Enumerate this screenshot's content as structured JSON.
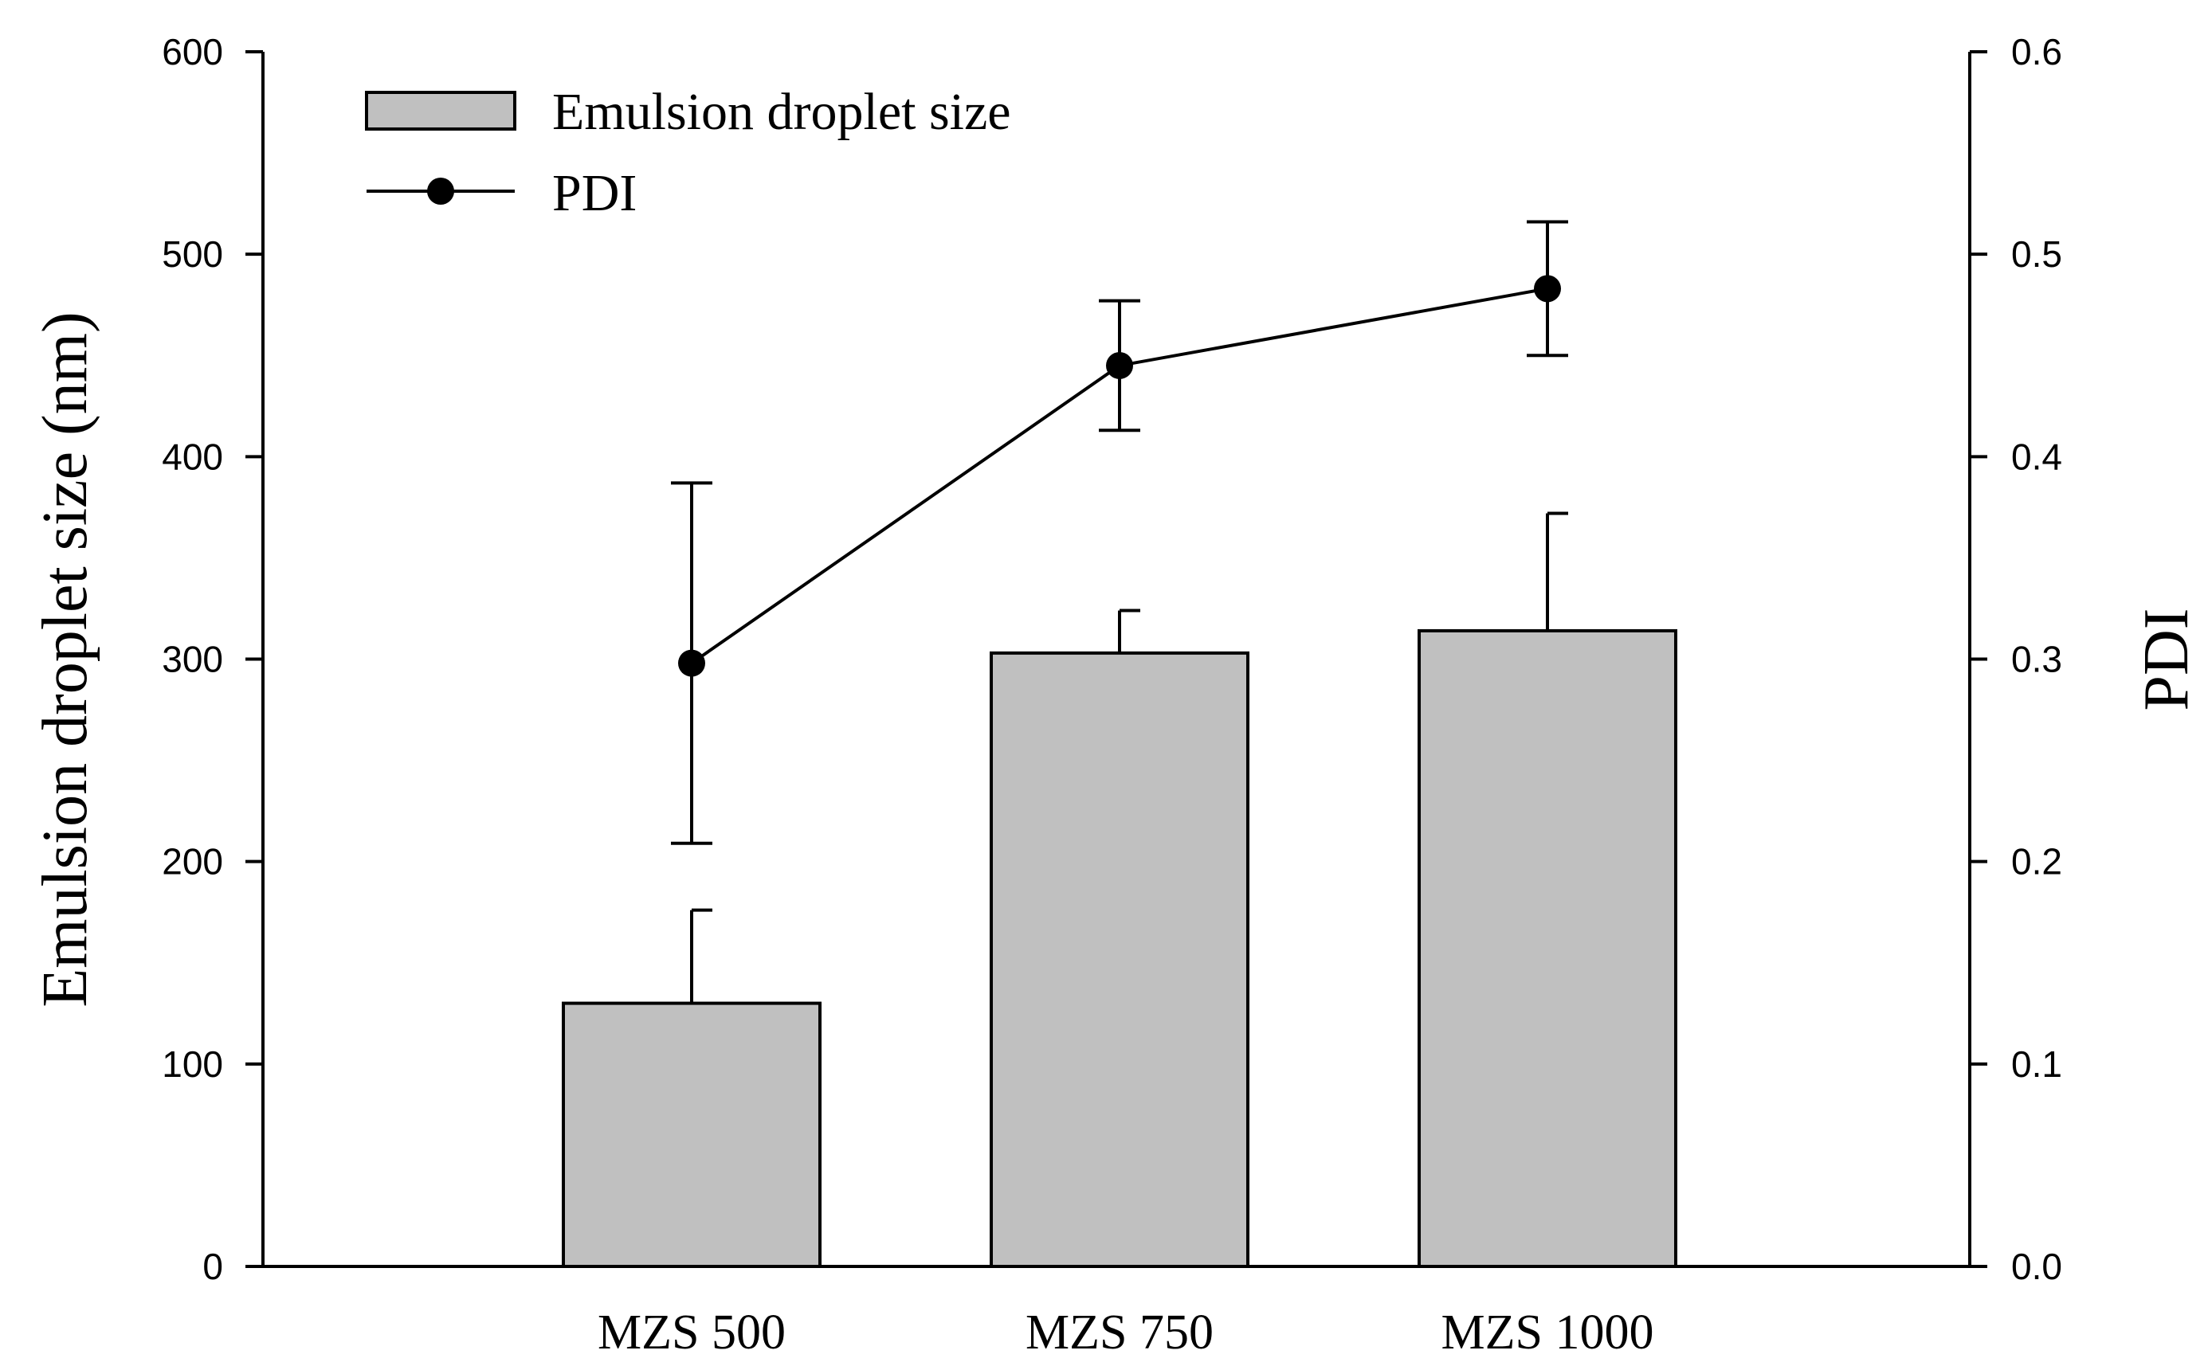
{
  "chart_data": {
    "type": "bar",
    "categories": [
      "MZS 500",
      "MZS 750",
      "MZS 1000"
    ],
    "series": [
      {
        "name": "Emulsion droplet size",
        "kind": "bar",
        "axis": "left",
        "values": [
          130,
          303,
          314
        ],
        "errors": [
          46,
          21,
          58
        ]
      },
      {
        "name": "PDI",
        "kind": "line",
        "axis": "right",
        "values": [
          0.298,
          0.445,
          0.483
        ],
        "errors": [
          0.089,
          0.032,
          0.033
        ]
      }
    ],
    "ylabel": "Emulsion droplet size (nm)",
    "y2label": "PDI",
    "xlabel": "",
    "ylim": [
      0,
      600
    ],
    "y2lim": [
      0,
      0.6
    ],
    "yticks": [
      "0",
      "100",
      "200",
      "300",
      "400",
      "500",
      "600"
    ],
    "y2ticks": [
      "0.0",
      "0.1",
      "0.2",
      "0.3",
      "0.4",
      "0.5",
      "0.6"
    ],
    "legend": {
      "position": "top-left",
      "entries": [
        "Emulsion droplet size",
        "PDI"
      ]
    },
    "colors": {
      "bar_fill": "#c0c0c0",
      "stroke": "#000000",
      "marker": "#000000"
    },
    "grid": false
  }
}
